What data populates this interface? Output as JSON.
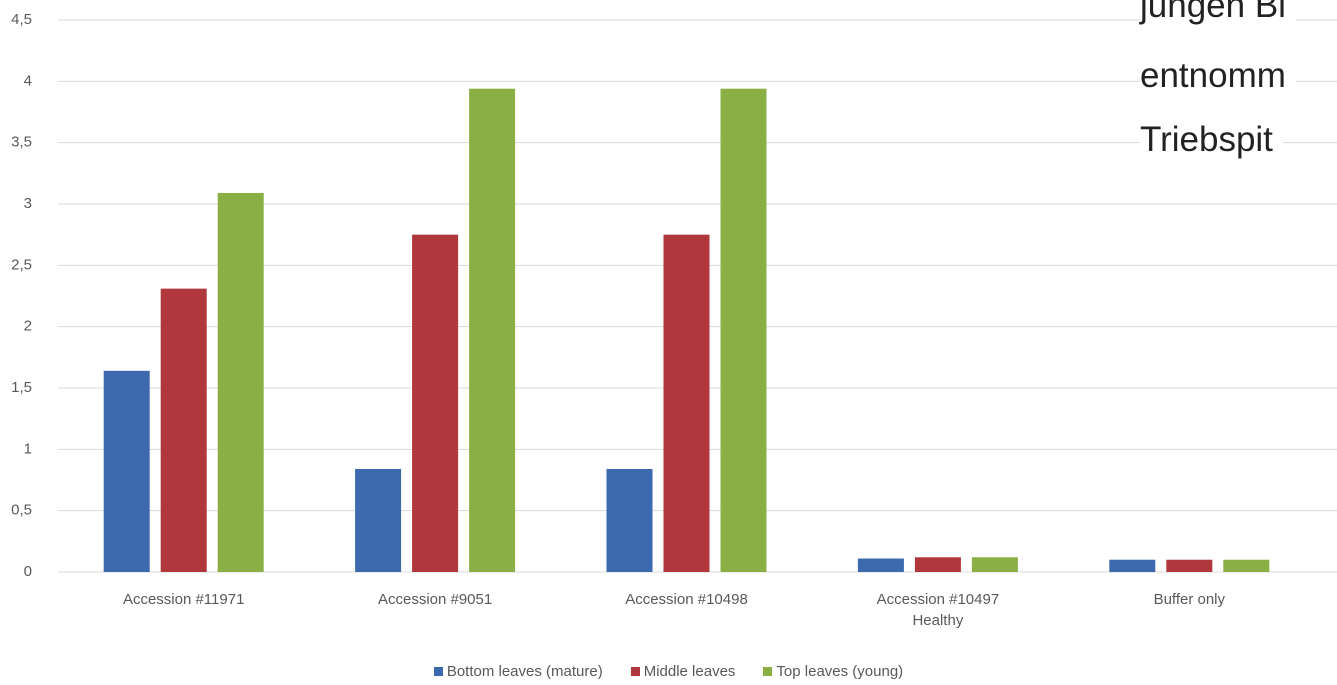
{
  "chart_data": {
    "type": "bar",
    "categories": [
      "Accession #11971",
      "Accession #9051",
      "Accession #10498",
      "Accession #10497 Healthy",
      "Buffer only"
    ],
    "series": [
      {
        "name": "Bottom leaves (mature)",
        "color": "#3d6aae",
        "values": [
          1.64,
          0.84,
          0.84,
          0.11,
          0.1
        ]
      },
      {
        "name": "Middle leaves",
        "color": "#b0373b",
        "values": [
          2.31,
          2.75,
          2.75,
          0.12,
          0.1
        ]
      },
      {
        "name": "Top leaves (young)",
        "color": "#8aaf45",
        "values": [
          3.09,
          3.94,
          3.94,
          0.12,
          0.1
        ]
      }
    ],
    "ylim": [
      0,
      4.5
    ],
    "yticks": [
      0,
      {
        "value": 0.5,
        "label": "0,5"
      },
      1,
      {
        "value": 1.5,
        "label": "1,5"
      },
      2,
      {
        "value": 2.5,
        "label": "2,5"
      },
      3,
      {
        "value": 3.5,
        "label": "3,5"
      },
      4,
      {
        "value": 4.5,
        "label": "4,5"
      }
    ],
    "grid": true,
    "legend": "bottom",
    "annotations": [
      "jungen Bl",
      "entnomm",
      "Triebspit"
    ]
  }
}
